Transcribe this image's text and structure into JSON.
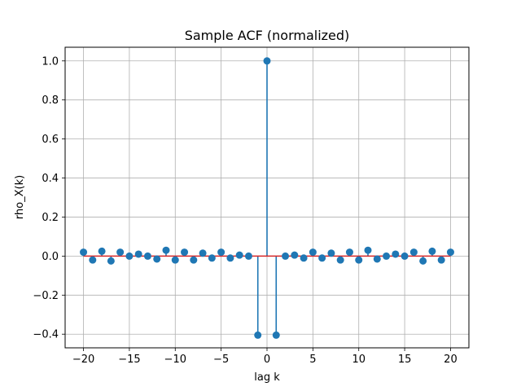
{
  "chart_data": {
    "type": "stem",
    "title": "Sample ACF (normalized)",
    "xlabel": "lag k",
    "ylabel": "rho_X(k)",
    "xlim": [
      -22,
      22
    ],
    "ylim": [
      -0.47,
      1.07
    ],
    "xticks": [
      -20,
      -15,
      -10,
      -5,
      0,
      5,
      10,
      15,
      20
    ],
    "xtick_labels": [
      "−20",
      "−15",
      "−10",
      "−5",
      "0",
      "5",
      "10",
      "15",
      "20"
    ],
    "yticks": [
      -0.4,
      -0.2,
      0.0,
      0.2,
      0.4,
      0.6,
      0.8,
      1.0
    ],
    "ytick_labels": [
      "−0.4",
      "−0.2",
      "0.0",
      "0.2",
      "0.4",
      "0.6",
      "0.8",
      "1.0"
    ],
    "grid": true,
    "color": "#1f77b4",
    "series": [
      {
        "x": [
          -20,
          -19,
          -18,
          -17,
          -16,
          -15,
          -14,
          -13,
          -12,
          -11,
          -10,
          -9,
          -8,
          -7,
          -6,
          -5,
          -4,
          -3,
          -2,
          -1,
          0,
          1,
          2,
          3,
          4,
          5,
          6,
          7,
          8,
          9,
          10,
          11,
          12,
          13,
          14,
          15,
          16,
          17,
          18,
          19,
          20
        ],
        "y": [
          0.02,
          -0.02,
          0.025,
          -0.025,
          0.02,
          0.0,
          0.01,
          0.0,
          -0.015,
          0.03,
          -0.02,
          0.02,
          -0.02,
          0.015,
          -0.01,
          0.02,
          -0.01,
          0.005,
          0.0,
          -0.405,
          1.0,
          -0.405,
          0.0,
          0.005,
          -0.01,
          0.02,
          -0.01,
          0.015,
          -0.02,
          0.02,
          -0.02,
          0.03,
          -0.015,
          0.0,
          0.01,
          0.0,
          0.02,
          -0.025,
          0.025,
          -0.02,
          0.02
        ]
      }
    ]
  }
}
